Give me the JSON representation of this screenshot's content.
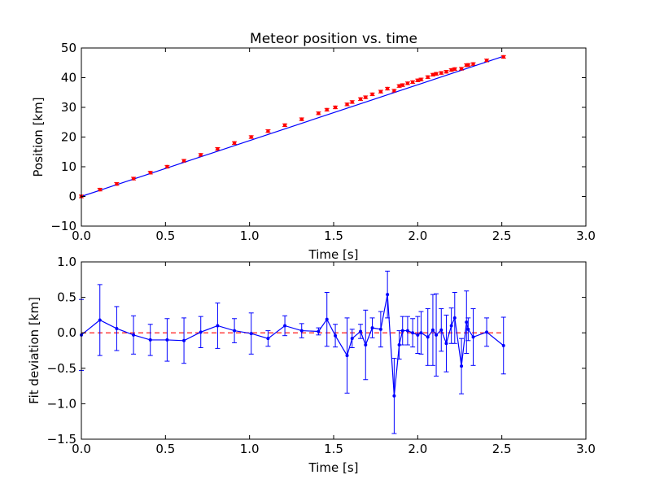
{
  "chart_data": [
    {
      "type": "scatter",
      "title": "Meteor position vs. time",
      "xlabel": "Time [s]",
      "ylabel": "Position [km]",
      "xlim": [
        0.0,
        3.0
      ],
      "ylim": [
        -10,
        50
      ],
      "xticks": [
        "0.0",
        "0.5",
        "1.0",
        "1.5",
        "2.0",
        "2.5",
        "3.0"
      ],
      "yticks": [
        "−10",
        "0",
        "10",
        "20",
        "30",
        "40",
        "50"
      ],
      "grid": false,
      "colors": {
        "points": "#ff0000",
        "fit": "#0000ff"
      },
      "series": [
        {
          "kind": "points-with-errorbars",
          "x": [
            0.0,
            0.11,
            0.21,
            0.31,
            0.41,
            0.51,
            0.61,
            0.71,
            0.81,
            0.91,
            1.01,
            1.11,
            1.21,
            1.31,
            1.41,
            1.46,
            1.51,
            1.58,
            1.61,
            1.66,
            1.69,
            1.73,
            1.78,
            1.82,
            1.86,
            1.89,
            1.91,
            1.94,
            1.97,
            2.0,
            2.02,
            2.06,
            2.09,
            2.11,
            2.14,
            2.17,
            2.2,
            2.22,
            2.26,
            2.29,
            2.3,
            2.33,
            2.41,
            2.51
          ],
          "y": [
            0.0,
            2.3,
            4.2,
            6.0,
            8.0,
            10.0,
            12.0,
            14.0,
            16.0,
            18.0,
            20.0,
            22.0,
            24.0,
            26.0,
            28.0,
            29.2,
            30.0,
            31.0,
            31.8,
            32.8,
            33.4,
            34.4,
            35.3,
            36.3,
            35.6,
            37.2,
            37.5,
            38.1,
            38.5,
            39.1,
            39.4,
            40.2,
            41.0,
            41.3,
            41.6,
            42.0,
            42.6,
            42.9,
            43.0,
            44.2,
            44.3,
            44.6,
            45.8,
            47.0
          ],
          "yerr": 0.45
        },
        {
          "kind": "fit-line",
          "x": [
            0.0,
            2.51
          ],
          "y": [
            0.0,
            47.2
          ]
        }
      ]
    },
    {
      "type": "line",
      "xlabel": "Time [s]",
      "ylabel": "Fit deviation [km]",
      "xlim": [
        0.0,
        3.0
      ],
      "ylim": [
        -1.5,
        1.0
      ],
      "xticks": [
        "0.0",
        "0.5",
        "1.0",
        "1.5",
        "2.0",
        "2.5",
        "3.0"
      ],
      "yticks": [
        "−1.5",
        "−1.0",
        "−0.5",
        "0.0",
        "0.5",
        "1.0"
      ],
      "grid": false,
      "colors": {
        "residuals": "#0000ff",
        "zero_line": "#ff0000"
      },
      "series": [
        {
          "kind": "residuals-with-errorbars",
          "x": [
            0.0,
            0.11,
            0.21,
            0.31,
            0.41,
            0.51,
            0.61,
            0.71,
            0.81,
            0.91,
            1.01,
            1.11,
            1.21,
            1.31,
            1.41,
            1.46,
            1.51,
            1.58,
            1.61,
            1.66,
            1.69,
            1.73,
            1.78,
            1.82,
            1.86,
            1.89,
            1.91,
            1.94,
            1.97,
            2.0,
            2.02,
            2.06,
            2.09,
            2.11,
            2.14,
            2.17,
            2.2,
            2.22,
            2.26,
            2.29,
            2.3,
            2.33,
            2.41,
            2.51
          ],
          "y": [
            -0.03,
            0.18,
            0.06,
            -0.03,
            -0.1,
            -0.1,
            -0.11,
            0.01,
            0.1,
            0.03,
            -0.01,
            -0.08,
            0.1,
            0.03,
            0.02,
            0.19,
            -0.04,
            -0.32,
            -0.08,
            0.02,
            -0.17,
            0.07,
            0.05,
            0.54,
            -0.89,
            -0.17,
            0.03,
            0.03,
            0.0,
            -0.03,
            0.0,
            -0.06,
            0.04,
            -0.03,
            0.04,
            -0.15,
            0.1,
            0.21,
            -0.47,
            0.15,
            0.05,
            -0.06,
            0.01,
            -0.18
          ],
          "yerr": [
            0.5,
            0.5,
            0.31,
            0.27,
            0.22,
            0.3,
            0.32,
            0.22,
            0.32,
            0.17,
            0.29,
            0.11,
            0.14,
            0.1,
            0.05,
            0.38,
            0.16,
            0.53,
            0.13,
            0.1,
            0.49,
            0.14,
            0.25,
            0.33,
            0.53,
            0.2,
            0.2,
            0.2,
            0.2,
            0.26,
            0.3,
            0.4,
            0.5,
            0.58,
            0.3,
            0.4,
            0.25,
            0.36,
            0.39,
            0.44,
            0.16,
            0.4,
            0.2,
            0.4
          ]
        },
        {
          "kind": "zero-line",
          "x": [
            0.0,
            2.51
          ],
          "y": [
            0.0,
            0.0
          ]
        }
      ]
    }
  ]
}
